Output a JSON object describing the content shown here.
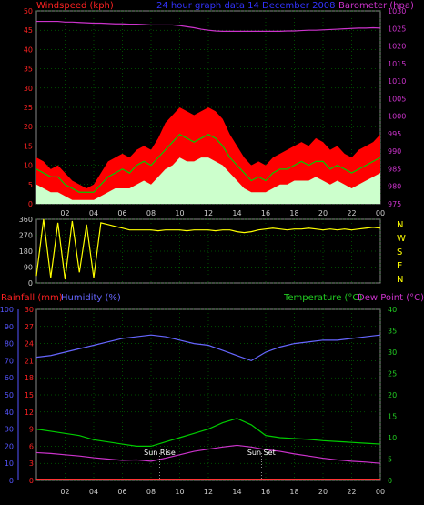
{
  "titles": {
    "windspeed": "Windspeed (kph)",
    "graph_title": "24 hour graph data   14 December 2008",
    "barometer": "Barometer (hpa)",
    "rainfall": "Rainfall (mm)",
    "humidity": "Humidity (%)",
    "temperature": "Temperature (°C)",
    "dewpoint": "Dew Point (°C)"
  },
  "colors": {
    "wind_gust": "#ff0000",
    "wind_avg": "#00cc00",
    "wind_speed": "#ccffcc",
    "barometer": "#cc33cc",
    "wind_dir": "#ffff00",
    "rain": "#ff3333",
    "humidity": "#6666ff",
    "temperature": "#00cc00",
    "dewpoint": "#cc33cc",
    "axis_left": "#ff2222",
    "axis_right_top": "#cc33cc",
    "axis_right_bottom": "#22cc22",
    "axis_blue": "#5555ff",
    "grid": "#009900"
  },
  "chart_data": [
    {
      "type": "line",
      "name": "wind-baro",
      "x_ticks": [
        "02",
        "04",
        "06",
        "08",
        "10",
        "12",
        "14",
        "16",
        "18",
        "20",
        "22",
        "00"
      ],
      "left_axis": {
        "label": "Windspeed (kph)",
        "ticks": [
          0,
          5,
          10,
          15,
          20,
          25,
          30,
          35,
          40,
          45,
          50
        ],
        "ylim": [
          0,
          50
        ]
      },
      "right_axis": {
        "label": "Barometer (hpa)",
        "ticks": [
          975,
          980,
          985,
          990,
          995,
          1000,
          1005,
          1010,
          1015,
          1020,
          1025,
          1030
        ],
        "ylim": [
          975,
          1030
        ]
      },
      "hours": [
        0,
        0.5,
        1,
        1.5,
        2,
        2.5,
        3,
        3.5,
        4,
        4.5,
        5,
        5.5,
        6,
        6.5,
        7,
        7.5,
        8,
        8.5,
        9,
        9.5,
        10,
        10.5,
        11,
        11.5,
        12,
        12.5,
        13,
        13.5,
        14,
        14.5,
        15,
        15.5,
        16,
        16.5,
        17,
        17.5,
        18,
        18.5,
        19,
        19.5,
        20,
        20.5,
        21,
        21.5,
        22,
        22.5,
        23,
        23.5,
        24
      ],
      "series": [
        {
          "name": "gust",
          "values": [
            12,
            11,
            9,
            10,
            8,
            6,
            5,
            4,
            5,
            8,
            11,
            12,
            13,
            12,
            14,
            15,
            14,
            17,
            21,
            23,
            25,
            24,
            23,
            24,
            25,
            24,
            22,
            18,
            15,
            12,
            10,
            11,
            10,
            12,
            13,
            14,
            15,
            16,
            15,
            17,
            16,
            14,
            15,
            13,
            12,
            14,
            15,
            16,
            18
          ]
        },
        {
          "name": "average",
          "values": [
            9,
            8,
            7,
            7,
            5,
            4,
            3,
            3,
            3,
            5,
            7,
            8,
            9,
            8,
            10,
            11,
            10,
            12,
            14,
            16,
            18,
            17,
            16,
            17,
            18,
            17,
            15,
            12,
            10,
            8,
            6,
            7,
            6,
            8,
            9,
            9,
            10,
            11,
            10,
            11,
            11,
            9,
            10,
            9,
            8,
            9,
            10,
            11,
            12
          ]
        },
        {
          "name": "speed",
          "values": [
            5,
            4,
            3,
            3,
            2,
            1,
            1,
            1,
            1,
            2,
            3,
            4,
            4,
            4,
            5,
            6,
            5,
            7,
            9,
            10,
            12,
            11,
            11,
            12,
            12,
            11,
            10,
            8,
            6,
            4,
            3,
            3,
            3,
            4,
            5,
            5,
            6,
            6,
            6,
            7,
            6,
            5,
            6,
            5,
            4,
            5,
            6,
            7,
            8
          ]
        },
        {
          "name": "barometer",
          "values": [
            1027,
            1027,
            1027,
            1027,
            1026.8,
            1026.8,
            1026.7,
            1026.6,
            1026.5,
            1026.5,
            1026.4,
            1026.3,
            1026.3,
            1026.2,
            1026.2,
            1026.1,
            1026,
            1026,
            1026,
            1026,
            1025.8,
            1025.5,
            1025.2,
            1024.8,
            1024.5,
            1024.3,
            1024.2,
            1024.2,
            1024.2,
            1024.2,
            1024.2,
            1024.2,
            1024.2,
            1024.2,
            1024.2,
            1024.3,
            1024.3,
            1024.4,
            1024.5,
            1024.5,
            1024.6,
            1024.7,
            1024.8,
            1024.9,
            1025,
            1025.1,
            1025.1,
            1025.2,
            1025.1
          ]
        }
      ]
    },
    {
      "type": "line",
      "name": "wind-direction",
      "left_axis": {
        "ticks": [
          0,
          90,
          180,
          270,
          360
        ],
        "ylim": [
          0,
          360
        ]
      },
      "right_labels": [
        "N",
        "W",
        "S",
        "E",
        "N"
      ],
      "hours": [
        0,
        0.5,
        1,
        1.5,
        2,
        2.5,
        3,
        3.5,
        4,
        4.5,
        5,
        5.5,
        6,
        6.5,
        7,
        7.5,
        8,
        8.5,
        9,
        9.5,
        10,
        10.5,
        11,
        11.5,
        12,
        12.5,
        13,
        13.5,
        14,
        14.5,
        15,
        15.5,
        16,
        16.5,
        17,
        17.5,
        18,
        18.5,
        19,
        19.5,
        20,
        20.5,
        21,
        21.5,
        22,
        22.5,
        23,
        23.5,
        24
      ],
      "values": [
        40,
        360,
        30,
        340,
        20,
        350,
        60,
        330,
        30,
        340,
        330,
        320,
        310,
        300,
        300,
        300,
        300,
        295,
        300,
        300,
        300,
        295,
        300,
        300,
        300,
        295,
        300,
        300,
        290,
        285,
        290,
        300,
        305,
        310,
        305,
        300,
        305,
        305,
        310,
        305,
        300,
        305,
        300,
        305,
        300,
        305,
        310,
        315,
        310
      ]
    },
    {
      "type": "line",
      "name": "climate",
      "x_ticks": [
        "02",
        "04",
        "06",
        "08",
        "10",
        "12",
        "14",
        "16",
        "18",
        "20",
        "22",
        "00"
      ],
      "left_axis_humidity": {
        "label": "Humidity (%)",
        "ticks": [
          0,
          10,
          20,
          30,
          40,
          50,
          60,
          70,
          80,
          90,
          100
        ],
        "ylim": [
          0,
          100
        ]
      },
      "left_axis_rain": {
        "label": "Rainfall (mm)",
        "ticks": [
          0,
          3,
          6,
          9,
          12,
          15,
          18,
          21,
          24,
          27,
          30
        ],
        "ylim": [
          0,
          30
        ]
      },
      "right_axis": {
        "label": "Temperature (°C)",
        "ticks": [
          0,
          5,
          10,
          15,
          20,
          25,
          30,
          35,
          40
        ],
        "ylim": [
          0,
          40
        ]
      },
      "annotations": [
        {
          "text": "Sun Rise",
          "hour": 8.6
        },
        {
          "text": "Sun Set",
          "hour": 15.7
        }
      ],
      "hours": [
        0,
        1,
        2,
        3,
        4,
        5,
        6,
        7,
        8,
        9,
        10,
        11,
        12,
        13,
        14,
        15,
        16,
        17,
        18,
        19,
        20,
        21,
        22,
        23,
        24
      ],
      "series": [
        {
          "name": "humidity",
          "values": [
            72,
            73,
            75,
            77,
            79,
            81,
            83,
            84,
            85,
            84,
            82,
            80,
            79,
            76,
            73,
            70,
            75,
            78,
            80,
            81,
            82,
            82,
            83,
            84,
            85
          ]
        },
        {
          "name": "temperature",
          "values": [
            12,
            11.5,
            11,
            10.5,
            9.5,
            9,
            8.5,
            8,
            8,
            9,
            10,
            11,
            12,
            13.5,
            14.5,
            13,
            10.5,
            10,
            9.8,
            9.6,
            9.3,
            9.1,
            8.9,
            8.7,
            8.5
          ]
        },
        {
          "name": "dewpoint",
          "values": [
            6.5,
            6.3,
            6,
            5.7,
            5.3,
            5,
            4.7,
            4.8,
            4.5,
            5.2,
            6,
            6.8,
            7.3,
            7.8,
            8.2,
            7.8,
            7.2,
            6.8,
            6.2,
            5.7,
            5.2,
            4.8,
            4.5,
            4.3,
            4
          ]
        },
        {
          "name": "rainfall",
          "values": [
            0,
            0,
            0,
            0,
            0,
            0,
            0,
            0,
            0,
            0,
            0,
            0,
            0,
            0,
            0,
            0,
            0,
            0,
            0,
            0,
            0,
            0,
            0,
            0,
            0
          ]
        }
      ]
    }
  ]
}
